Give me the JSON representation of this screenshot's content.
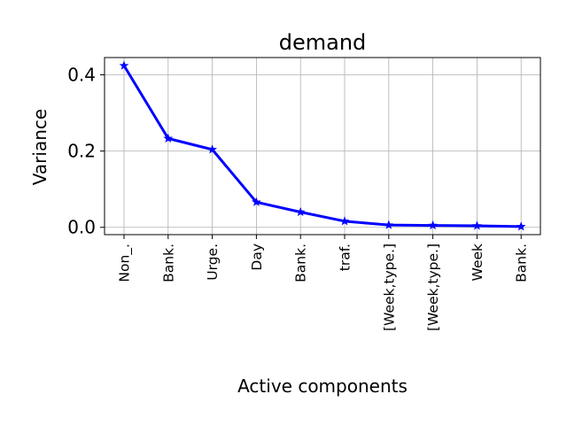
{
  "chart_data": {
    "type": "line",
    "title": "demand",
    "xlabel": "Active components",
    "ylabel": "Variance",
    "categories": [
      "Non_.",
      "Bank.",
      "Urge.",
      "Day",
      "Bank.",
      "traf.",
      "[Week,type.]",
      "[Week,type.]",
      "Week",
      "Bank."
    ],
    "series": [
      {
        "values": [
          0.424,
          0.233,
          0.204,
          0.066,
          0.04,
          0.016,
          0.006,
          0.005,
          0.004,
          0.002
        ],
        "color": "#0000ff",
        "marker": "star"
      }
    ],
    "ylim": [
      -0.0192,
      0.4452
    ],
    "yticks": [
      0.0,
      0.2,
      0.4
    ],
    "ytick_labels": [
      "0.0",
      "0.2",
      "0.4"
    ],
    "grid": true
  }
}
